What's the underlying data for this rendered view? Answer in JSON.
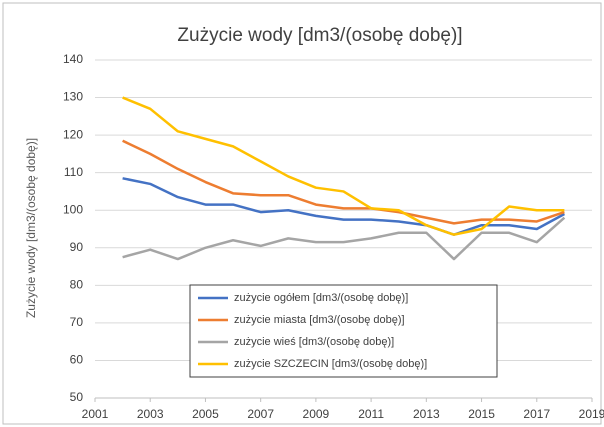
{
  "chart_data": {
    "type": "line",
    "title": "Zużycie wody [dm3/(osobę dobę)]",
    "y_label": "Zużycie wody [dm3/(osobę dobę)]",
    "x": [
      2002,
      2003,
      2004,
      2005,
      2006,
      2007,
      2008,
      2009,
      2010,
      2011,
      2012,
      2013,
      2014,
      2015,
      2016,
      2017,
      2018
    ],
    "series": [
      {
        "name": "zużycie ogółem [dm3/(osobę dobę)]",
        "color": "#4472c4",
        "values": [
          108.5,
          107,
          103.5,
          101.5,
          101.5,
          99.5,
          100,
          98.5,
          97.5,
          97.5,
          97,
          96,
          93.5,
          96,
          96,
          95,
          99
        ]
      },
      {
        "name": "zużycie miasta [dm3/(osobę dobę)]",
        "color": "#ed7d31",
        "values": [
          118.5,
          115,
          111,
          107.5,
          104.5,
          104,
          104,
          101.5,
          100.5,
          100.5,
          99.5,
          98,
          96.5,
          97.5,
          97.5,
          97,
          99.5
        ]
      },
      {
        "name": "zużycie wieś [dm3/(osobę dobę)]",
        "color": "#a5a5a5",
        "values": [
          87.5,
          89.5,
          87,
          90,
          92,
          90.5,
          92.5,
          91.5,
          91.5,
          92.5,
          94,
          94,
          87,
          94,
          94,
          91.5,
          98
        ]
      },
      {
        "name": "zużycie SZCZECIN [dm3/(osobę dobę)]",
        "color": "#ffc000",
        "values": [
          130,
          127,
          121,
          119,
          117,
          113,
          109,
          106,
          105,
          100.5,
          100,
          96,
          93.5,
          95,
          101,
          100,
          100
        ]
      }
    ],
    "xlim": [
      2001,
      2019
    ],
    "xticks": [
      2001,
      2003,
      2005,
      2007,
      2009,
      2011,
      2013,
      2015,
      2017,
      2019
    ],
    "ylim": [
      50,
      140
    ],
    "yticks": [
      50,
      60,
      70,
      80,
      90,
      100,
      110,
      120,
      130,
      140
    ],
    "grid": true
  }
}
